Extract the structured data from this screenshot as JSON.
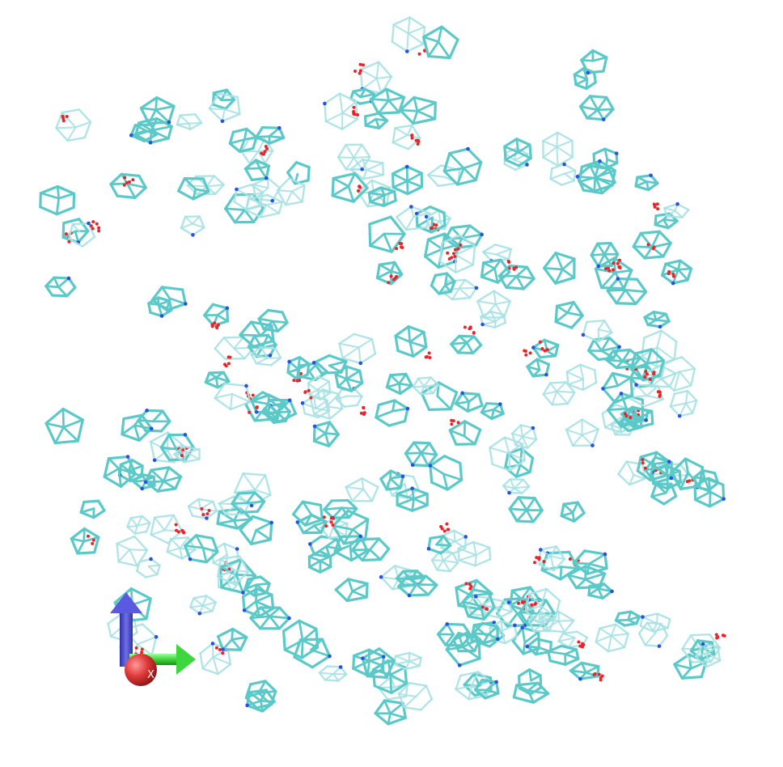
{
  "scene": {
    "background": "#ffffff",
    "bond_color": "#5cc9c9",
    "bond_color_faded": "#a9e2e4",
    "oxygen_color": "#e8252b",
    "nitrogen_color": "#2b4fe0",
    "cluster_count": 260,
    "random_seed": 7
  },
  "axes": {
    "z_color": "#4a4ad6",
    "y_color": "#3dd63d",
    "x_color": "#e03a3a",
    "x_label": "X"
  }
}
